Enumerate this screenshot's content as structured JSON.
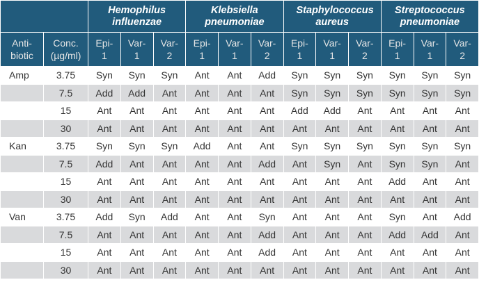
{
  "table": {
    "organisms": [
      "Hemophilus influenzae",
      "Klebsiella pneumoniae",
      "Staphylococcus aureus",
      "Streptococcus pneumoniae"
    ],
    "column_headers": [
      [
        "Anti-",
        "biotic"
      ],
      [
        "Conc.",
        "(µg/ml)"
      ],
      [
        "Epi-",
        "1"
      ],
      [
        "Var-",
        "1"
      ],
      [
        "Var-",
        "2"
      ]
    ],
    "groups": [
      {
        "antibiotic": "Amp",
        "rows": [
          {
            "conc": "3.75",
            "cells": [
              "Syn",
              "Syn",
              "Syn",
              "Ant",
              "Ant",
              "Add",
              "Syn",
              "Syn",
              "Syn",
              "Syn",
              "Syn",
              "Syn"
            ]
          },
          {
            "conc": "7.5",
            "cells": [
              "Add",
              "Add",
              "Ant",
              "Ant",
              "Ant",
              "Ant",
              "Syn",
              "Syn",
              "Syn",
              "Syn",
              "Syn",
              "Syn"
            ]
          },
          {
            "conc": "15",
            "cells": [
              "Ant",
              "Ant",
              "Ant",
              "Ant",
              "Ant",
              "Ant",
              "Add",
              "Add",
              "Ant",
              "Ant",
              "Ant",
              "Ant"
            ]
          },
          {
            "conc": "30",
            "cells": [
              "Ant",
              "Ant",
              "Ant",
              "Ant",
              "Ant",
              "Ant",
              "Ant",
              "Ant",
              "Ant",
              "Ant",
              "Ant",
              "Ant"
            ]
          }
        ]
      },
      {
        "antibiotic": "Kan",
        "rows": [
          {
            "conc": "3.75",
            "cells": [
              "Syn",
              "Syn",
              "Syn",
              "Add",
              "Ant",
              "Ant",
              "Syn",
              "Syn",
              "Syn",
              "Syn",
              "Syn",
              "Syn"
            ]
          },
          {
            "conc": "7.5",
            "cells": [
              "Add",
              "Ant",
              "Ant",
              "Ant",
              "Ant",
              "Add",
              "Ant",
              "Syn",
              "Ant",
              "Syn",
              "Syn",
              "Ant"
            ]
          },
          {
            "conc": "15",
            "cells": [
              "Ant",
              "Ant",
              "Ant",
              "Ant",
              "Ant",
              "Ant",
              "Ant",
              "Ant",
              "Ant",
              "Add",
              "Ant",
              "Ant"
            ]
          },
          {
            "conc": "30",
            "cells": [
              "Ant",
              "Ant",
              "Ant",
              "Ant",
              "Ant",
              "Ant",
              "Ant",
              "Ant",
              "Ant",
              "Ant",
              "Ant",
              "Ant"
            ]
          }
        ]
      },
      {
        "antibiotic": "Van",
        "rows": [
          {
            "conc": "3.75",
            "cells": [
              "Add",
              "Syn",
              "Add",
              "Ant",
              "Ant",
              "Syn",
              "Ant",
              "Ant",
              "Ant",
              "Syn",
              "Ant",
              "Add"
            ]
          },
          {
            "conc": "7.5",
            "cells": [
              "Ant",
              "Ant",
              "Ant",
              "Ant",
              "Ant",
              "Add",
              "Ant",
              "Ant",
              "Ant",
              "Add",
              "Add",
              "Ant"
            ]
          },
          {
            "conc": "15",
            "cells": [
              "Ant",
              "Ant",
              "Ant",
              "Ant",
              "Ant",
              "Add",
              "Ant",
              "Ant",
              "Ant",
              "Ant",
              "Ant",
              "Ant"
            ]
          },
          {
            "conc": "30",
            "cells": [
              "Ant",
              "Ant",
              "Ant",
              "Ant",
              "Ant",
              "Ant",
              "Ant",
              "Ant",
              "Ant",
              "Ant",
              "Ant",
              "Ant"
            ]
          }
        ]
      }
    ]
  }
}
